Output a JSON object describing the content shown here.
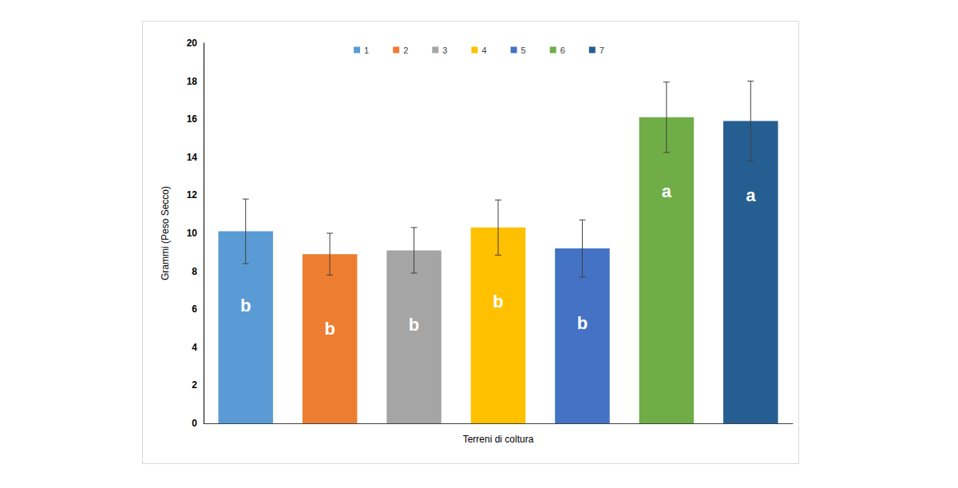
{
  "chart_data": {
    "type": "bar",
    "categories": [
      "1",
      "2",
      "3",
      "4",
      "5",
      "6",
      "7"
    ],
    "values": [
      10.1,
      8.9,
      9.1,
      10.3,
      9.2,
      16.1,
      15.9
    ],
    "errors": [
      1.7,
      1.1,
      1.2,
      1.45,
      1.5,
      1.85,
      2.1
    ],
    "group_letters": [
      "b",
      "b",
      "b",
      "b",
      "b",
      "a",
      "a"
    ],
    "colors": [
      "#5b9bd5",
      "#ed7d31",
      "#a5a5a5",
      "#ffc000",
      "#4472c4",
      "#70ad47",
      "#255e91"
    ],
    "x_label": "Terreni di coltura",
    "y_label": "Grammi (Peso Secco)",
    "ylim": [
      0,
      20
    ],
    "yticks": [
      0,
      2,
      4,
      6,
      8,
      10,
      12,
      14,
      16,
      18,
      20
    ],
    "legend": "top",
    "grid": false,
    "tick_labels": "y"
  }
}
